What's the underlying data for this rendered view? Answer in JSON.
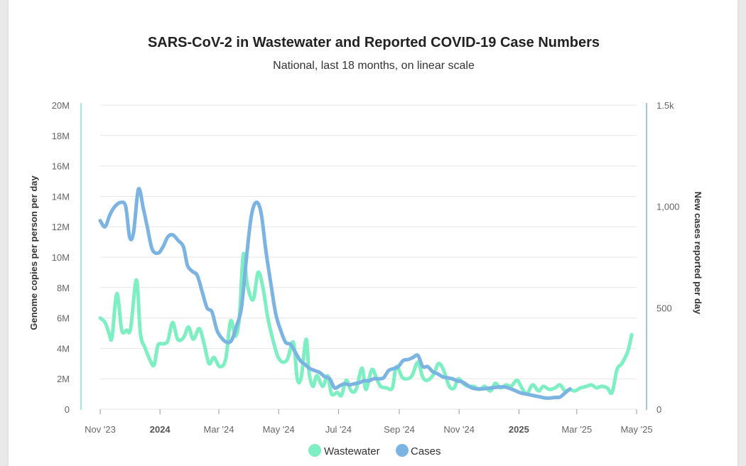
{
  "chart_data": {
    "type": "line",
    "title": "SARS-CoV-2 in Wastewater and Reported COVID-19 Case Numbers",
    "subtitle": "National, last 18 months, on linear scale",
    "y_left": {
      "label": "Genome copies per person per day",
      "range": [
        0,
        20000000
      ],
      "ticks": [
        "0",
        "2M",
        "4M",
        "6M",
        "8M",
        "10M",
        "12M",
        "14M",
        "16M",
        "18M",
        "20M"
      ],
      "tick_values": [
        0,
        2000000,
        4000000,
        6000000,
        8000000,
        10000000,
        12000000,
        14000000,
        16000000,
        18000000,
        20000000
      ]
    },
    "y_right": {
      "label": "New cases reported per day",
      "range": [
        0,
        1500
      ],
      "ticks": [
        "0",
        "500",
        "1,000",
        "1.5k"
      ],
      "tick_values": [
        0,
        500,
        1000,
        1500
      ]
    },
    "x_axis": {
      "range": [
        "2023-11-01",
        "2025-05-01"
      ],
      "ticks": [
        {
          "label": "Nov '23",
          "date": "2023-11-01",
          "bold": false
        },
        {
          "label": "2024",
          "date": "2024-01-01",
          "bold": true
        },
        {
          "label": "Mar '24",
          "date": "2024-03-01",
          "bold": false
        },
        {
          "label": "May '24",
          "date": "2024-05-01",
          "bold": false
        },
        {
          "label": "Jul '24",
          "date": "2024-07-01",
          "bold": false
        },
        {
          "label": "Sep '24",
          "date": "2024-09-01",
          "bold": false
        },
        {
          "label": "Nov '24",
          "date": "2024-11-01",
          "bold": false
        },
        {
          "label": "2025",
          "date": "2025-01-01",
          "bold": true
        },
        {
          "label": "Mar '25",
          "date": "2025-03-01",
          "bold": false
        },
        {
          "label": "May '25",
          "date": "2025-05-01",
          "bold": false
        }
      ]
    },
    "grid": true,
    "legend_position": "bottom",
    "series": [
      {
        "name": "Wastewater",
        "axis": "left",
        "color": "#7defc2",
        "points": [
          [
            "2023-11-01",
            6000000
          ],
          [
            "2023-11-06",
            5700000
          ],
          [
            "2023-11-10",
            5000000
          ],
          [
            "2023-11-13",
            4700000
          ],
          [
            "2023-11-18",
            7600000
          ],
          [
            "2023-11-23",
            5200000
          ],
          [
            "2023-11-28",
            5200000
          ],
          [
            "2023-12-02",
            5300000
          ],
          [
            "2023-12-08",
            8500000
          ],
          [
            "2023-12-12",
            5000000
          ],
          [
            "2023-12-17",
            4000000
          ],
          [
            "2023-12-22",
            3200000
          ],
          [
            "2023-12-26",
            2900000
          ],
          [
            "2023-12-30",
            4200000
          ],
          [
            "2024-01-05",
            4300000
          ],
          [
            "2024-01-09",
            4500000
          ],
          [
            "2024-01-14",
            5700000
          ],
          [
            "2024-01-19",
            4600000
          ],
          [
            "2024-01-25",
            4700000
          ],
          [
            "2024-01-30",
            5400000
          ],
          [
            "2024-02-04",
            4600000
          ],
          [
            "2024-02-10",
            5300000
          ],
          [
            "2024-02-15",
            4300000
          ],
          [
            "2024-02-20",
            3000000
          ],
          [
            "2024-02-25",
            3400000
          ],
          [
            "2024-03-02",
            2800000
          ],
          [
            "2024-03-08",
            3300000
          ],
          [
            "2024-03-13",
            5800000
          ],
          [
            "2024-03-18",
            4800000
          ],
          [
            "2024-03-22",
            6100000
          ],
          [
            "2024-03-26",
            10200000
          ],
          [
            "2024-03-30",
            8200000
          ],
          [
            "2024-04-05",
            7200000
          ],
          [
            "2024-04-10",
            9000000
          ],
          [
            "2024-04-15",
            8000000
          ],
          [
            "2024-04-20",
            6000000
          ],
          [
            "2024-04-25",
            4600000
          ],
          [
            "2024-04-30",
            3500000
          ],
          [
            "2024-05-05",
            3100000
          ],
          [
            "2024-05-10",
            3300000
          ],
          [
            "2024-05-16",
            4400000
          ],
          [
            "2024-05-20",
            2000000
          ],
          [
            "2024-05-24",
            2100000
          ],
          [
            "2024-05-29",
            4600000
          ],
          [
            "2024-06-01",
            2400000
          ],
          [
            "2024-06-05",
            1500000
          ],
          [
            "2024-06-09",
            2200000
          ],
          [
            "2024-06-15",
            1500000
          ],
          [
            "2024-06-20",
            2200000
          ],
          [
            "2024-06-24",
            1000000
          ],
          [
            "2024-06-30",
            1100000
          ],
          [
            "2024-07-04",
            900000
          ],
          [
            "2024-07-09",
            1900000
          ],
          [
            "2024-07-14",
            1200000
          ],
          [
            "2024-07-19",
            1300000
          ],
          [
            "2024-07-25",
            2700000
          ],
          [
            "2024-07-29",
            1300000
          ],
          [
            "2024-08-04",
            2600000
          ],
          [
            "2024-08-09",
            2000000
          ],
          [
            "2024-08-13",
            1500000
          ],
          [
            "2024-08-19",
            1400000
          ],
          [
            "2024-08-25",
            1400000
          ],
          [
            "2024-08-29",
            2800000
          ],
          [
            "2024-09-04",
            2100000
          ],
          [
            "2024-09-09",
            2000000
          ],
          [
            "2024-09-14",
            2200000
          ],
          [
            "2024-09-20",
            3100000
          ],
          [
            "2024-09-25",
            2100000
          ],
          [
            "2024-09-30",
            1900000
          ],
          [
            "2024-10-06",
            2300000
          ],
          [
            "2024-10-11",
            3000000
          ],
          [
            "2024-10-16",
            2600000
          ],
          [
            "2024-10-22",
            1500000
          ],
          [
            "2024-10-27",
            1400000
          ],
          [
            "2024-10-31",
            2000000
          ],
          [
            "2024-11-05",
            1700000
          ],
          [
            "2024-11-10",
            1500000
          ],
          [
            "2024-11-16",
            1500000
          ],
          [
            "2024-11-22",
            1300000
          ],
          [
            "2024-11-27",
            1500000
          ],
          [
            "2024-12-03",
            1200000
          ],
          [
            "2024-12-08",
            1700000
          ],
          [
            "2024-12-13",
            1400000
          ],
          [
            "2024-12-19",
            1600000
          ],
          [
            "2024-12-24",
            1500000
          ],
          [
            "2024-12-30",
            1900000
          ],
          [
            "2025-01-04",
            1400000
          ],
          [
            "2025-01-09",
            1000000
          ],
          [
            "2025-01-15",
            1600000
          ],
          [
            "2025-01-21",
            1200000
          ],
          [
            "2025-01-26",
            1500000
          ],
          [
            "2025-02-01",
            1300000
          ],
          [
            "2025-02-07",
            1400000
          ],
          [
            "2025-02-12",
            1600000
          ],
          [
            "2025-02-17",
            1200000
          ],
          [
            "2025-02-22",
            1300000
          ],
          [
            "2025-02-27",
            1200000
          ],
          [
            "2025-03-05",
            1400000
          ],
          [
            "2025-03-11",
            1500000
          ],
          [
            "2025-03-16",
            1600000
          ],
          [
            "2025-03-21",
            1400000
          ],
          [
            "2025-03-26",
            1500000
          ],
          [
            "2025-04-01",
            1400000
          ],
          [
            "2025-04-06",
            1100000
          ],
          [
            "2025-04-11",
            2600000
          ],
          [
            "2025-04-16",
            3000000
          ],
          [
            "2025-04-22",
            3800000
          ],
          [
            "2025-04-26",
            4900000
          ]
        ]
      },
      {
        "name": "Cases",
        "axis": "right",
        "color": "#7bb4e3",
        "points": [
          [
            "2023-11-01",
            930
          ],
          [
            "2023-11-06",
            900
          ],
          [
            "2023-11-11",
            960
          ],
          [
            "2023-11-16",
            1000
          ],
          [
            "2023-11-22",
            1020
          ],
          [
            "2023-11-27",
            1000
          ],
          [
            "2023-12-01",
            850
          ],
          [
            "2023-12-05",
            870
          ],
          [
            "2023-12-10",
            1085
          ],
          [
            "2023-12-15",
            990
          ],
          [
            "2023-12-19",
            900
          ],
          [
            "2023-12-24",
            790
          ],
          [
            "2023-12-30",
            770
          ],
          [
            "2024-01-04",
            800
          ],
          [
            "2024-01-09",
            850
          ],
          [
            "2024-01-14",
            860
          ],
          [
            "2024-01-20",
            830
          ],
          [
            "2024-01-25",
            800
          ],
          [
            "2024-01-29",
            710
          ],
          [
            "2024-02-03",
            680
          ],
          [
            "2024-02-08",
            660
          ],
          [
            "2024-02-13",
            580
          ],
          [
            "2024-02-18",
            500
          ],
          [
            "2024-02-23",
            480
          ],
          [
            "2024-02-28",
            390
          ],
          [
            "2024-03-04",
            350
          ],
          [
            "2024-03-09",
            330
          ],
          [
            "2024-03-14",
            340
          ],
          [
            "2024-03-19",
            410
          ],
          [
            "2024-03-24",
            500
          ],
          [
            "2024-03-29",
            740
          ],
          [
            "2024-04-03",
            950
          ],
          [
            "2024-04-08",
            1020
          ],
          [
            "2024-04-13",
            970
          ],
          [
            "2024-04-18",
            780
          ],
          [
            "2024-04-23",
            620
          ],
          [
            "2024-04-28",
            470
          ],
          [
            "2024-05-03",
            390
          ],
          [
            "2024-05-08",
            330
          ],
          [
            "2024-05-13",
            320
          ],
          [
            "2024-05-18",
            280
          ],
          [
            "2024-05-23",
            240
          ],
          [
            "2024-05-28",
            220
          ],
          [
            "2024-06-02",
            200
          ],
          [
            "2024-06-07",
            190
          ],
          [
            "2024-06-12",
            180
          ],
          [
            "2024-06-17",
            160
          ],
          [
            "2024-06-22",
            150
          ],
          [
            "2024-06-27",
            105
          ],
          [
            "2024-07-02",
            115
          ],
          [
            "2024-07-07",
            125
          ],
          [
            "2024-07-12",
            120
          ],
          [
            "2024-07-17",
            125
          ],
          [
            "2024-07-22",
            130
          ],
          [
            "2024-07-27",
            140
          ],
          [
            "2024-08-01",
            140
          ],
          [
            "2024-08-06",
            150
          ],
          [
            "2024-08-11",
            150
          ],
          [
            "2024-08-16",
            155
          ],
          [
            "2024-08-21",
            190
          ],
          [
            "2024-08-26",
            200
          ],
          [
            "2024-08-31",
            210
          ],
          [
            "2024-09-05",
            240
          ],
          [
            "2024-09-10",
            245
          ],
          [
            "2024-09-15",
            255
          ],
          [
            "2024-09-20",
            265
          ],
          [
            "2024-09-25",
            210
          ],
          [
            "2024-09-30",
            210
          ],
          [
            "2024-10-05",
            185
          ],
          [
            "2024-10-10",
            175
          ],
          [
            "2024-10-15",
            160
          ],
          [
            "2024-10-20",
            155
          ],
          [
            "2024-10-25",
            150
          ],
          [
            "2024-10-30",
            140
          ],
          [
            "2024-11-04",
            135
          ],
          [
            "2024-11-09",
            120
          ],
          [
            "2024-11-14",
            105
          ],
          [
            "2024-11-19",
            100
          ],
          [
            "2024-11-24",
            100
          ],
          [
            "2024-11-29",
            102
          ],
          [
            "2024-12-04",
            105
          ],
          [
            "2024-12-09",
            108
          ],
          [
            "2024-12-14",
            110
          ],
          [
            "2024-12-19",
            108
          ],
          [
            "2024-12-24",
            100
          ],
          [
            "2024-12-29",
            90
          ],
          [
            "2025-01-03",
            80
          ],
          [
            "2025-01-08",
            75
          ],
          [
            "2025-01-13",
            70
          ],
          [
            "2025-01-18",
            65
          ],
          [
            "2025-01-23",
            60
          ],
          [
            "2025-01-28",
            55
          ],
          [
            "2025-02-02",
            55
          ],
          [
            "2025-02-07",
            58
          ],
          [
            "2025-02-12",
            60
          ],
          [
            "2025-02-17",
            80
          ],
          [
            "2025-02-22",
            100
          ]
        ]
      }
    ]
  }
}
